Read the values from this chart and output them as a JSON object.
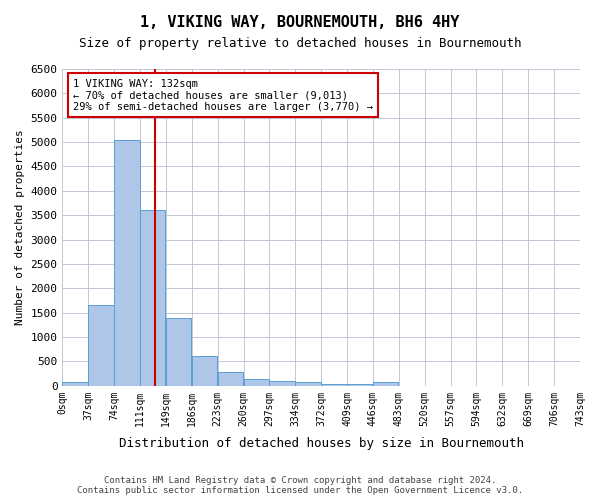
{
  "title": "1, VIKING WAY, BOURNEMOUTH, BH6 4HY",
  "subtitle": "Size of property relative to detached houses in Bournemouth",
  "xlabel": "Distribution of detached houses by size in Bournemouth",
  "ylabel": "Number of detached properties",
  "footer_line1": "Contains HM Land Registry data © Crown copyright and database right 2024.",
  "footer_line2": "Contains public sector information licensed under the Open Government Licence v3.0.",
  "bin_labels": [
    "0sqm",
    "37sqm",
    "74sqm",
    "111sqm",
    "149sqm",
    "186sqm",
    "223sqm",
    "260sqm",
    "297sqm",
    "334sqm",
    "372sqm",
    "409sqm",
    "446sqm",
    "483sqm",
    "520sqm",
    "557sqm",
    "594sqm",
    "632sqm",
    "669sqm",
    "706sqm",
    "743sqm"
  ],
  "bar_values": [
    80,
    1650,
    5050,
    3600,
    1400,
    610,
    290,
    140,
    100,
    75,
    40,
    40,
    75,
    0,
    0,
    0,
    0,
    0,
    0,
    0
  ],
  "bar_color": "#aec6e8",
  "bar_edge_color": "#5a9fd4",
  "vline_x": 132,
  "vline_color": "#cc0000",
  "ylim": [
    0,
    6500
  ],
  "yticks": [
    0,
    500,
    1000,
    1500,
    2000,
    2500,
    3000,
    3500,
    4000,
    4500,
    5000,
    5500,
    6000,
    6500
  ],
  "annotation_text": "1 VIKING WAY: 132sqm\n← 70% of detached houses are smaller (9,013)\n29% of semi-detached houses are larger (3,770) →",
  "annotation_box_color": "#cc0000",
  "bin_width": 37,
  "background_color": "#ffffff",
  "grid_color": "#c0c8d8"
}
